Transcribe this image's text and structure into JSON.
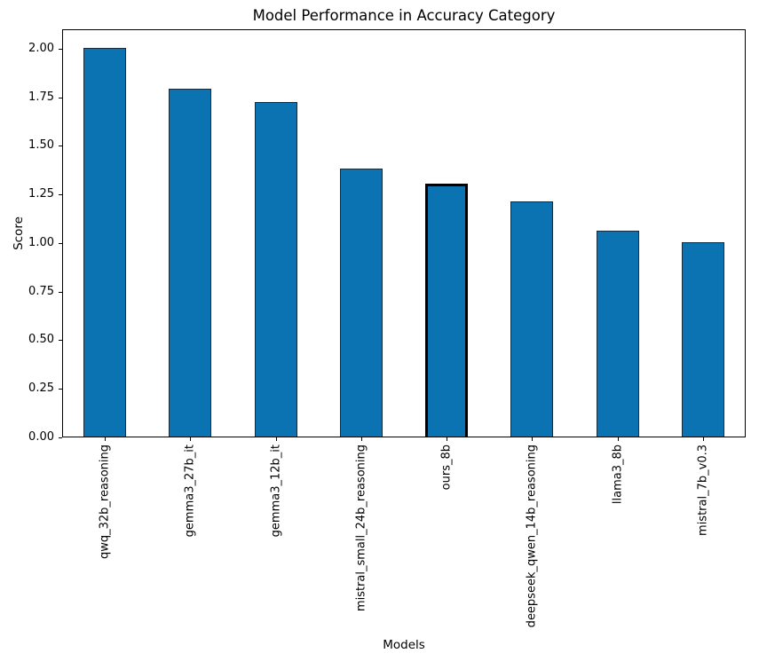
{
  "figure": {
    "background": "#ffffff"
  },
  "chart_data": {
    "type": "bar",
    "title": "Model Performance in Accuracy Category",
    "xlabel": "Models",
    "ylabel": "Score",
    "categories": [
      "qwq_32b_reasoning",
      "gemma3_27b_it",
      "gemma3_12b_it",
      "mistral_small_24b_reasoning",
      "ours_8b",
      "deepseek_qwen_14b_reasoning",
      "llama3_8b",
      "mistral_7b_v0.3"
    ],
    "values": [
      2.0,
      1.79,
      1.72,
      1.38,
      1.3,
      1.21,
      1.06,
      1.0
    ],
    "highlighted_category": "ours_8b",
    "ylim": [
      0,
      2.1
    ],
    "ytick_labels": [
      "0.00",
      "0.25",
      "0.50",
      "0.75",
      "1.00",
      "1.25",
      "1.50",
      "1.75",
      "2.00"
    ],
    "x_tick_rotation": 90,
    "grid": false,
    "legend_position": "none",
    "bar_width_fraction": 0.5,
    "colors": {
      "bar_fill": "#0b73b2",
      "bar_edge": "#132b40",
      "highlight_edge": "#000000",
      "spine": "#000000",
      "text": "#000000"
    }
  }
}
